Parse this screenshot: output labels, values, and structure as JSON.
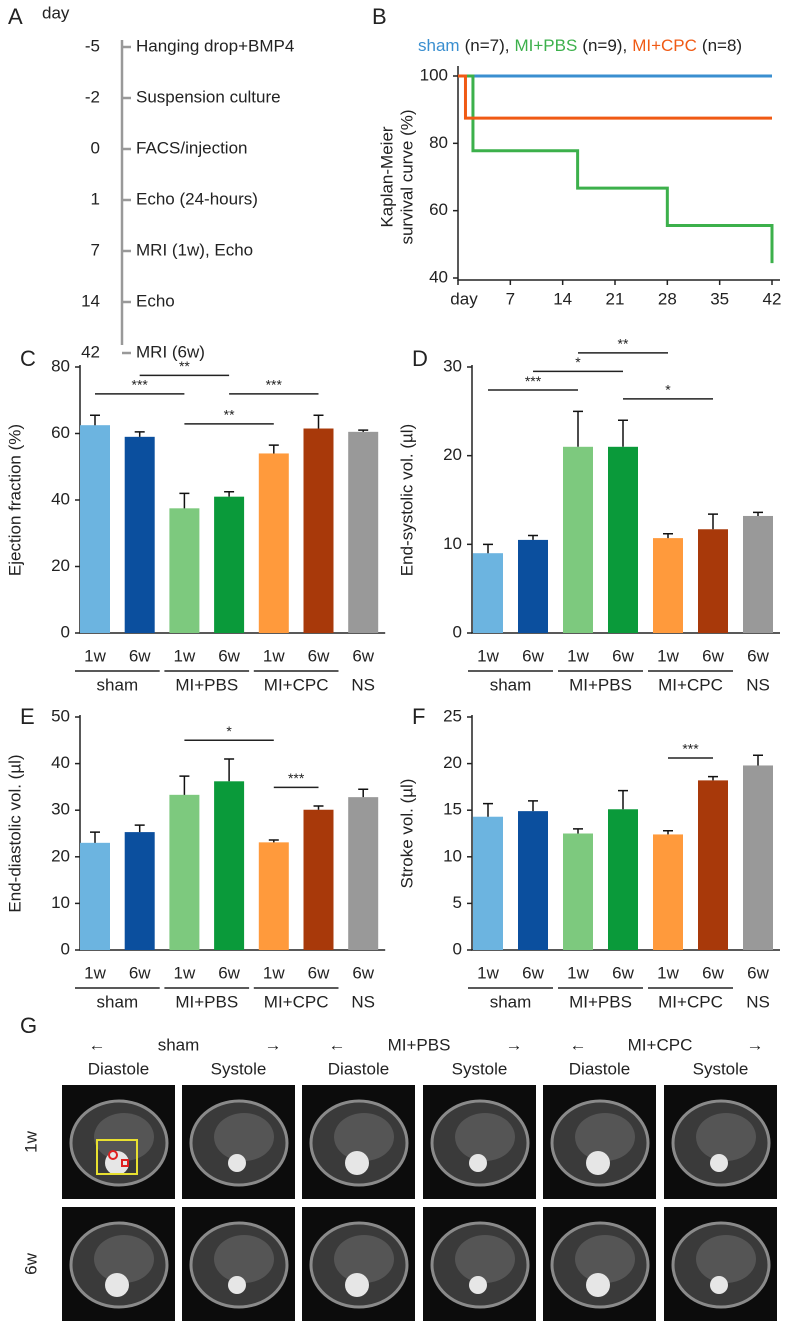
{
  "panel_labels": [
    "A",
    "B",
    "C",
    "D",
    "E",
    "F",
    "G"
  ],
  "timeline": {
    "header": "day",
    "days": [
      -5,
      -2,
      0,
      1,
      7,
      14,
      42
    ],
    "labels": [
      "Hanging drop+BMP4",
      "Suspension culture",
      "FACS/injection",
      "Echo (24-hours)",
      "MRI (1w), Echo",
      "Echo",
      "MRI (6w)"
    ]
  },
  "chart_data": [
    {
      "type": "step",
      "ylabel": [
        "Kaplan-Meier",
        "survival curve (%)"
      ],
      "xlim": [
        0,
        42
      ],
      "xticks": [
        {
          "value": 0,
          "label": "day"
        },
        7,
        14,
        21,
        28,
        35,
        42
      ],
      "ylim": [
        40,
        100
      ],
      "yticks": [
        40,
        60,
        80,
        100
      ],
      "series": [
        {
          "name": "sham",
          "n_label": "(n=7),",
          "color": "#3a8fd0",
          "x": [
            0,
            42
          ],
          "values": [
            100,
            100
          ]
        },
        {
          "name": "MI+PBS",
          "n_label": "(n=9),",
          "color": "#3cb04b",
          "x": [
            0,
            2,
            16,
            28,
            42
          ],
          "values": [
            100,
            77.8,
            66.7,
            55.6,
            44.4
          ]
        },
        {
          "name": "MI+CPC",
          "n_label": "(n=8)",
          "color": "#f05a14",
          "x": [
            0,
            1,
            42
          ],
          "values": [
            100,
            87.5,
            87.5
          ]
        }
      ]
    },
    {
      "type": "bar",
      "ylabel": "Ejection fraction (%)",
      "categories": [
        "1w",
        "6w",
        "1w",
        "6w",
        "1w",
        "6w",
        "6w"
      ],
      "groups": [
        "sham",
        "MI+PBS",
        "MI+CPC",
        "NS"
      ],
      "group_sizes": [
        2,
        2,
        2,
        1
      ],
      "values": [
        62.5,
        59,
        37.5,
        41,
        54,
        61.5,
        60.5
      ],
      "errors": [
        3,
        1.5,
        4.5,
        1.5,
        2.5,
        4,
        0.5
      ],
      "colors": [
        "#6cb4e0",
        "#0b4f9e",
        "#7dc97e",
        "#0a9a3a",
        "#ff9a3c",
        "#a8390a",
        "#999999"
      ],
      "ylim": [
        0,
        80
      ],
      "yticks": [
        0,
        20,
        40,
        60,
        80
      ],
      "significance": [
        {
          "from": 0,
          "to": 2,
          "label": "***"
        },
        {
          "from": 1,
          "to": 3,
          "label": "**"
        },
        {
          "from": 2,
          "to": 4,
          "label": "**"
        },
        {
          "from": 3,
          "to": 5,
          "label": "***"
        }
      ]
    },
    {
      "type": "bar",
      "ylabel": "End-systolic vol. (µl)",
      "categories": [
        "1w",
        "6w",
        "1w",
        "6w",
        "1w",
        "6w",
        "6w"
      ],
      "groups": [
        "sham",
        "MI+PBS",
        "MI+CPC",
        "NS"
      ],
      "group_sizes": [
        2,
        2,
        2,
        1
      ],
      "values": [
        9,
        10.5,
        21,
        21,
        10.7,
        11.7,
        13.2
      ],
      "errors": [
        1,
        0.5,
        4,
        3,
        0.5,
        1.7,
        0.4
      ],
      "colors": [
        "#6cb4e0",
        "#0b4f9e",
        "#7dc97e",
        "#0a9a3a",
        "#ff9a3c",
        "#a8390a",
        "#999999"
      ],
      "ylim": [
        0,
        30
      ],
      "yticks": [
        0,
        10,
        20,
        30
      ],
      "significance": [
        {
          "from": 0,
          "to": 2,
          "label": "***"
        },
        {
          "from": 1,
          "to": 3,
          "label": "*"
        },
        {
          "from": 2,
          "to": 4,
          "label": "**"
        },
        {
          "from": 3,
          "to": 5,
          "label": "*"
        }
      ]
    },
    {
      "type": "bar",
      "ylabel": "End-diastolic vol. (µl)",
      "categories": [
        "1w",
        "6w",
        "1w",
        "6w",
        "1w",
        "6w",
        "6w"
      ],
      "groups": [
        "sham",
        "MI+PBS",
        "MI+CPC",
        "NS"
      ],
      "group_sizes": [
        2,
        2,
        2,
        1
      ],
      "values": [
        23,
        25.3,
        33.3,
        36.2,
        23.1,
        30.1,
        32.8
      ],
      "errors": [
        2.3,
        1.5,
        4,
        4.8,
        0.5,
        0.8,
        1.7
      ],
      "colors": [
        "#6cb4e0",
        "#0b4f9e",
        "#7dc97e",
        "#0a9a3a",
        "#ff9a3c",
        "#a8390a",
        "#999999"
      ],
      "ylim": [
        0,
        50
      ],
      "yticks": [
        0,
        10,
        20,
        30,
        40,
        50
      ],
      "significance": [
        {
          "from": 2,
          "to": 4,
          "label": "*"
        },
        {
          "from": 4,
          "to": 5,
          "label": "***"
        }
      ]
    },
    {
      "type": "bar",
      "ylabel": "Stroke vol. (µl)",
      "categories": [
        "1w",
        "6w",
        "1w",
        "6w",
        "1w",
        "6w",
        "6w"
      ],
      "groups": [
        "sham",
        "MI+PBS",
        "MI+CPC",
        "NS"
      ],
      "group_sizes": [
        2,
        2,
        2,
        1
      ],
      "values": [
        14.3,
        14.9,
        12.5,
        15.1,
        12.4,
        18.2,
        19.8
      ],
      "errors": [
        1.4,
        1.1,
        0.5,
        2,
        0.4,
        0.4,
        1.1
      ],
      "colors": [
        "#6cb4e0",
        "#0b4f9e",
        "#7dc97e",
        "#0a9a3a",
        "#ff9a3c",
        "#a8390a",
        "#999999"
      ],
      "ylim": [
        0,
        25
      ],
      "yticks": [
        0,
        5,
        10,
        15,
        20,
        25
      ],
      "significance": [
        {
          "from": 4,
          "to": 5,
          "label": "***"
        }
      ]
    }
  ],
  "mri": {
    "groups": [
      "sham",
      "MI+PBS",
      "MI+CPC"
    ],
    "phases": [
      "Diastole",
      "Systole",
      "Diastole",
      "Systole",
      "Diastole",
      "Systole"
    ],
    "rows": [
      "1w",
      "6w"
    ]
  }
}
